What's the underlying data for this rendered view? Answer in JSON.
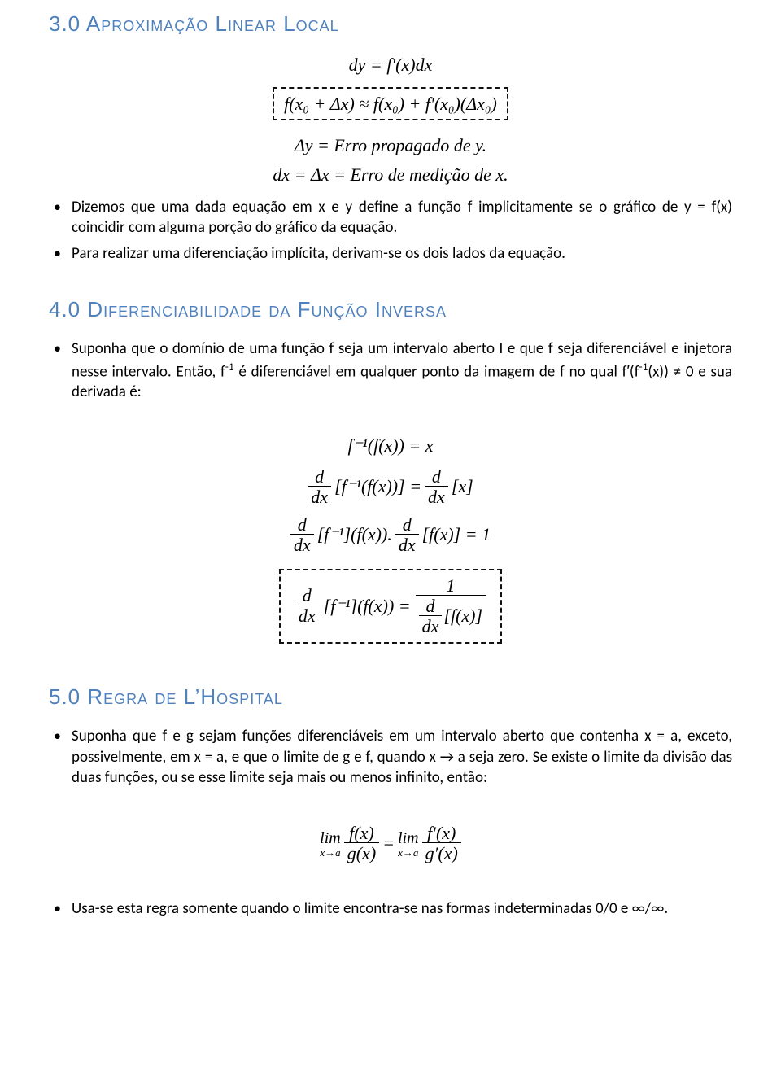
{
  "colors": {
    "heading": "#4f81bd",
    "text": "#000000",
    "background": "#ffffff",
    "dash": "#111111"
  },
  "typography": {
    "heading_font": "Copperplate",
    "body_font": "Calibri",
    "math_font": "Cambria Math",
    "heading_size_pt": 20,
    "body_size_pt": 14,
    "math_size_pt": 16
  },
  "section3": {
    "heading": "3.0 Aproximação Linear Local",
    "eq1": "dy = f′(x)dx",
    "eq2_boxed": "f(x₀ + Δx) ≈ f(x₀) + f′(x₀)(Δx₀)",
    "eq3": "Δy = Erro propagado de y.",
    "eq4": "dx = Δx = Erro de medição de x.",
    "bullet1": "Dizemos que uma dada equação em x e y define a função f implicitamente se o gráfico de y = f(x) coincidir com alguma porção do gráfico da equação.",
    "bullet2": "Para realizar uma diferenciação implícita, derivam-se os dois lados da equação."
  },
  "section4": {
    "heading": "4.0 Diferenciabilidade da Função Inversa",
    "bullet1_a": "Suponha que o domínio de uma função f seja um intervalo aberto I e que f seja diferenciável e injetora nesse intervalo. Então, f",
    "bullet1_sup": "-1",
    "bullet1_b": " é diferenciável em qualquer ponto da imagem de f no qual f′(f",
    "bullet1_sup2": "-1",
    "bullet1_c": "(x)) ≠ 0 e sua derivada é:",
    "eq1": "f⁻¹(f(x)) = x",
    "eq2_lhs_num": "d",
    "eq2_lhs_den": "dx",
    "eq2_lhs_tail": "[f⁻¹(f(x))] =",
    "eq2_rhs_num": "d",
    "eq2_rhs_den": "dx",
    "eq2_rhs_tail": "[x]",
    "eq3_a_num": "d",
    "eq3_a_den": "dx",
    "eq3_a_tail": "[f⁻¹](f(x)).",
    "eq3_b_num": "d",
    "eq3_b_den": "dx",
    "eq3_b_tail": "[f(x)] = 1",
    "eq4_lhs_num": "d",
    "eq4_lhs_den": "dx",
    "eq4_lhs_tail": "[f⁻¹](f(x)) =",
    "eq4_rhs_num": "1",
    "eq4_rhs_den_num": "d",
    "eq4_rhs_den_den": "dx",
    "eq4_rhs_den_tail": "[f(x)]"
  },
  "section5": {
    "heading": "5.0 Regra de L’Hospital",
    "bullet1": "Suponha que f e g sejam funções diferenciáveis em um intervalo aberto que contenha x = a, exceto, possivelmente, em x = a, e que o limite de g e f, quando x → a seja zero. Se existe o limite da divisão das duas funções, ou se esse limite seja mais ou menos infinito, então:",
    "lim_word": "lim",
    "lim_cond": "x→a",
    "frac1_num": "f(x)",
    "frac1_den": "g(x)",
    "equals": " = ",
    "frac2_num": "f′(x)",
    "frac2_den": "g′(x)",
    "bullet2": "Usa-se esta regra somente quando o limite encontra-se nas formas indeterminadas 0/0 e ∞/∞."
  }
}
